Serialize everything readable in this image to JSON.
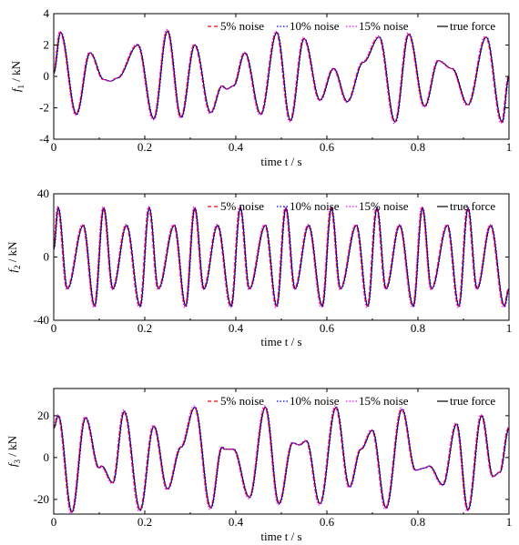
{
  "chart_data": [
    {
      "type": "line",
      "id": "f1",
      "ylabel": {
        "sym": "f",
        "sub": "1",
        "unit": " / kN"
      },
      "xlabel": "time t / s",
      "xlim": [
        0,
        1
      ],
      "ylim": [
        -4,
        4
      ],
      "xticks": [
        "0",
        "0.2",
        "0.4",
        "0.6",
        "0.8",
        "1"
      ],
      "xtick_values": [
        0,
        0.2,
        0.4,
        0.6,
        0.8,
        1
      ],
      "yticks": [
        "-4",
        "-2",
        "0",
        "2",
        "4"
      ],
      "ytick_values": [
        -4,
        -2,
        0,
        2,
        4
      ],
      "legend_position": "top-right",
      "series": [
        {
          "name": "5% noise",
          "color": "#ff0000",
          "style": "dashed"
        },
        {
          "name": "10% noise",
          "color": "#0000ff",
          "style": "dotted"
        },
        {
          "name": "15% noise",
          "color": "#ff00ff",
          "style": "dotted"
        },
        {
          "name": "true force",
          "color": "#000000",
          "style": "solid"
        }
      ],
      "peaks": {
        "t": [
          0,
          0.015,
          0.05,
          0.08,
          0.11,
          0.125,
          0.14,
          0.185,
          0.22,
          0.25,
          0.28,
          0.31,
          0.345,
          0.37,
          0.38,
          0.395,
          0.42,
          0.455,
          0.49,
          0.52,
          0.55,
          0.585,
          0.615,
          0.645,
          0.68,
          0.715,
          0.75,
          0.78,
          0.815,
          0.845,
          0.875,
          0.91,
          0.95,
          0.985,
          1.0
        ],
        "v": [
          0.2,
          2.8,
          -2.4,
          1.5,
          -0.2,
          -0.3,
          -0.1,
          2.0,
          -2.7,
          2.9,
          -2.6,
          2.0,
          -2.3,
          -0.6,
          -0.8,
          -0.6,
          1.5,
          -2.4,
          2.8,
          -2.8,
          2.4,
          -1.5,
          0.5,
          -1.6,
          0.9,
          2.5,
          -2.9,
          2.7,
          -1.9,
          1.0,
          0.5,
          -1.8,
          2.5,
          -2.9,
          0.0
        ]
      }
    },
    {
      "type": "line",
      "id": "f2",
      "ylabel": {
        "sym": "f",
        "sub": "2",
        "unit": " / kN"
      },
      "xlabel": "time t / s",
      "xlim": [
        0,
        1
      ],
      "ylim": [
        -40,
        40
      ],
      "xticks": [
        "0",
        "0.2",
        "0.4",
        "0.6",
        "0.8",
        "1"
      ],
      "xtick_values": [
        0,
        0.2,
        0.4,
        0.6,
        0.8,
        1
      ],
      "yticks": [
        "-40",
        "0",
        "40"
      ],
      "ytick_values": [
        -40,
        0,
        40
      ],
      "legend_position": "top-right",
      "series": [
        {
          "name": "5% noise",
          "color": "#ff0000",
          "style": "dashed"
        },
        {
          "name": "10% noise",
          "color": "#0000ff",
          "style": "dotted"
        },
        {
          "name": "15% noise",
          "color": "#ff00ff",
          "style": "dotted"
        },
        {
          "name": "true force",
          "color": "#000000",
          "style": "solid"
        }
      ],
      "peaks": {
        "t": [
          0,
          0.01,
          0.03,
          0.065,
          0.09,
          0.11,
          0.13,
          0.16,
          0.19,
          0.21,
          0.23,
          0.265,
          0.29,
          0.31,
          0.33,
          0.36,
          0.39,
          0.41,
          0.43,
          0.465,
          0.49,
          0.51,
          0.53,
          0.56,
          0.59,
          0.61,
          0.63,
          0.665,
          0.69,
          0.71,
          0.73,
          0.76,
          0.79,
          0.81,
          0.83,
          0.865,
          0.89,
          0.91,
          0.93,
          0.96,
          0.99,
          1.0
        ],
        "v": [
          5,
          31,
          -20,
          20,
          -31,
          31,
          -20,
          20,
          -31,
          31,
          -20,
          20,
          -31,
          31,
          -20,
          20,
          -31,
          31,
          -20,
          20,
          -31,
          31,
          -20,
          20,
          -31,
          31,
          -20,
          20,
          -31,
          31,
          -20,
          20,
          -31,
          31,
          -20,
          20,
          -31,
          31,
          -20,
          20,
          -31,
          -20
        ]
      }
    },
    {
      "type": "line",
      "id": "f3",
      "ylabel": {
        "sym": "f",
        "sub": "3",
        "unit": " / kN"
      },
      "xlabel": "time t / s",
      "xlim": [
        0,
        1
      ],
      "ylim": [
        -27,
        33
      ],
      "xticks": [
        "0",
        "0.2",
        "0.4",
        "0.6",
        "0.8",
        "1"
      ],
      "xtick_values": [
        0,
        0.2,
        0.4,
        0.6,
        0.8,
        1
      ],
      "yticks": [
        "-20",
        "0",
        "20"
      ],
      "ytick_values": [
        -20,
        0,
        20
      ],
      "legend_position": "top-right",
      "series": [
        {
          "name": "5% noise",
          "color": "#ff0000",
          "style": "dashed"
        },
        {
          "name": "10% noise",
          "color": "#0000ff",
          "style": "dotted"
        },
        {
          "name": "15% noise",
          "color": "#ff00ff",
          "style": "dotted"
        },
        {
          "name": "true force",
          "color": "#000000",
          "style": "solid"
        }
      ],
      "peaks": {
        "t": [
          0,
          0.01,
          0.04,
          0.07,
          0.1,
          0.105,
          0.13,
          0.155,
          0.19,
          0.22,
          0.25,
          0.28,
          0.31,
          0.345,
          0.37,
          0.375,
          0.395,
          0.43,
          0.465,
          0.495,
          0.525,
          0.54,
          0.555,
          0.585,
          0.62,
          0.65,
          0.675,
          0.7,
          0.73,
          0.765,
          0.795,
          0.815,
          0.825,
          0.855,
          0.885,
          0.91,
          0.94,
          0.965,
          0.98,
          1.0
        ],
        "v": [
          14,
          20,
          -26,
          19,
          -5,
          -4,
          -12,
          22,
          -25,
          15,
          -15,
          5,
          24,
          -24,
          5,
          4,
          4,
          -19,
          24,
          -22,
          7,
          6,
          8,
          -22,
          24,
          -14,
          4,
          13,
          -24,
          23,
          -6,
          -5,
          -4,
          -13,
          16,
          -25,
          20,
          -9,
          -7,
          14
        ]
      }
    }
  ]
}
